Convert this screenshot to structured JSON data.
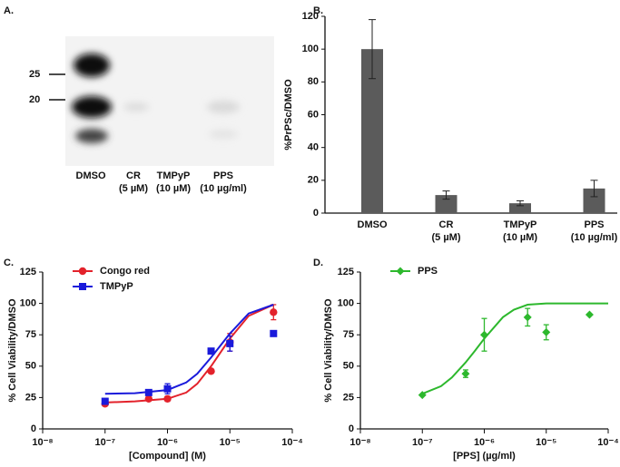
{
  "blot": {
    "label": "A.",
    "markers": [
      "25",
      "20"
    ],
    "lanes": [
      "DMSO",
      "CR\n(5 µM)",
      "TMPyP\n(10 µM)",
      "PPS\n(10 µg/ml)"
    ]
  },
  "chart_data": [
    {
      "type": "bar",
      "label": "B.",
      "y_label": "%PrPSc/DMSO",
      "categories": [
        "DMSO",
        "CR\n(5 µM)",
        "TMPyP\n(10 µM)",
        "PPS\n(10 µg/ml)"
      ],
      "values": [
        100,
        11,
        6,
        15
      ],
      "errors": [
        18,
        2.5,
        1.5,
        5
      ],
      "color": "#5b5b5b",
      "ylim": [
        0,
        120
      ],
      "yticks": [
        0,
        20,
        40,
        60,
        80,
        100,
        120
      ]
    },
    {
      "type": "scatter",
      "label": "C.",
      "x_label": "[Compound] (M)",
      "y_label": "% Cell Viability/DMSO",
      "log_x": true,
      "xlim": [
        1e-08,
        0.0001
      ],
      "xticks": [
        {
          "value": 1e-08,
          "label": "10⁻⁸"
        },
        {
          "value": 1e-07,
          "label": "10⁻⁷"
        },
        {
          "value": 1e-06,
          "label": "10⁻⁶"
        },
        {
          "value": 1e-05,
          "label": "10⁻⁵"
        },
        {
          "value": 0.0001,
          "label": "10⁻⁴"
        }
      ],
      "ylim": [
        0,
        125
      ],
      "yticks": [
        0,
        25,
        50,
        75,
        100,
        125
      ],
      "legend": "upper left",
      "series": [
        {
          "name": "Congo red",
          "color": "#e3222b",
          "marker": "circle",
          "x": [
            1e-07,
            5e-07,
            1e-06,
            5e-06,
            1e-05,
            5e-05
          ],
          "values": [
            20,
            24,
            24,
            46,
            69,
            93
          ],
          "errors": [
            null,
            null,
            2,
            null,
            7,
            6
          ],
          "fit": {
            "x": [
              1e-07,
              3e-07,
              1e-06,
              2e-06,
              3e-06,
              5e-06,
              1e-05,
              2e-05,
              5e-05
            ],
            "values": [
              21,
              22,
              24,
              29,
              36,
              50,
              72,
              90,
              99
            ]
          }
        },
        {
          "name": "TMPyP",
          "color": "#1a1adb",
          "marker": "square",
          "x": [
            1e-07,
            5e-07,
            1e-06,
            5e-06,
            1e-05,
            5e-05
          ],
          "values": [
            22,
            29,
            32,
            62,
            68,
            76
          ],
          "errors": [
            null,
            null,
            4,
            null,
            6,
            null
          ],
          "fit": {
            "x": [
              1e-07,
              3e-07,
              1e-06,
              2e-06,
              3e-06,
              5e-06,
              1e-05,
              2e-05,
              5e-05
            ],
            "values": [
              28,
              28.5,
              31,
              37,
              44,
              57,
              76,
              92,
              99
            ]
          }
        }
      ]
    },
    {
      "type": "scatter",
      "label": "D.",
      "x_label": "[PPS] (µg/ml)",
      "y_label": "% Cell Viability/DMSO",
      "log_x": true,
      "xlim": [
        1e-08,
        0.0001
      ],
      "xticks": [
        {
          "value": 1e-08,
          "label": "10⁻⁸"
        },
        {
          "value": 1e-07,
          "label": "10⁻⁷"
        },
        {
          "value": 1e-06,
          "label": "10⁻⁶"
        },
        {
          "value": 1e-05,
          "label": "10⁻⁵"
        },
        {
          "value": 0.0001,
          "label": "10⁻⁴"
        }
      ],
      "ylim": [
        0,
        125
      ],
      "yticks": [
        0,
        25,
        50,
        75,
        100,
        125
      ],
      "legend": "upper left",
      "series": [
        {
          "name": "PPS",
          "color": "#2db82d",
          "marker": "diamond",
          "x": [
            1e-07,
            5e-07,
            1e-06,
            5e-06,
            1e-05,
            5e-05
          ],
          "values": [
            27,
            44,
            75,
            89,
            77,
            91
          ],
          "errors": [
            null,
            3,
            13,
            7,
            6,
            null
          ],
          "fit": {
            "x": [
              1e-07,
              2e-07,
              3e-07,
              5e-07,
              7e-07,
              1e-06,
              2e-06,
              3e-06,
              5e-06,
              1e-05,
              0.0001
            ],
            "values": [
              28,
              34,
              41,
              53,
              62,
              72,
              89,
              95,
              99,
              100,
              100
            ]
          }
        }
      ]
    }
  ]
}
